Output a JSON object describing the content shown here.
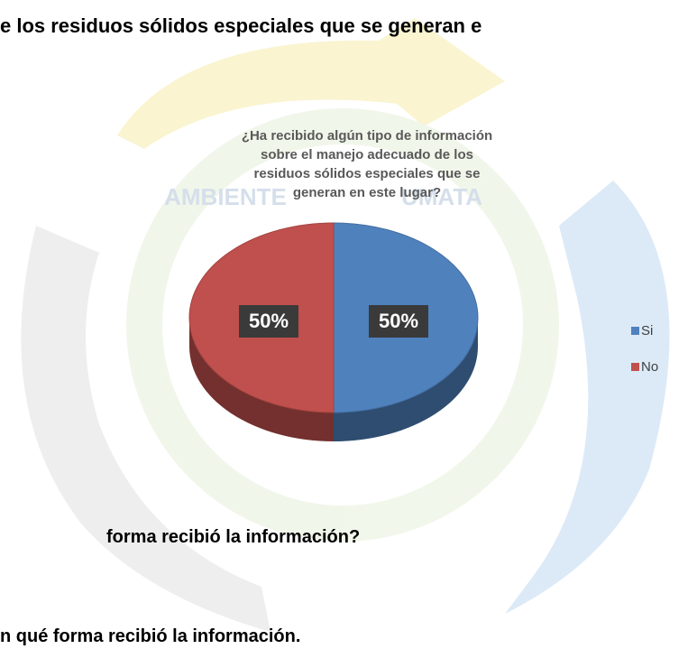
{
  "document": {
    "heading": "e los residuos sólidos especiales que se generan e",
    "question": "forma recibió la información?",
    "caption": "n qué forma recibió la información.",
    "watermark": [
      "AMBIENTE",
      "UMATA"
    ]
  },
  "chart_data": {
    "type": "pie",
    "title": "¿Ha recibido algún tipo de información sobre el manejo adecuado de los residuos sólidos especiales que se generan en este lugar?",
    "categories": [
      "Si",
      "No"
    ],
    "values": [
      50,
      50
    ],
    "value_labels": [
      "50%",
      "50%"
    ],
    "colors": [
      "#4f81bd",
      "#c0504d"
    ],
    "legend": "right"
  }
}
